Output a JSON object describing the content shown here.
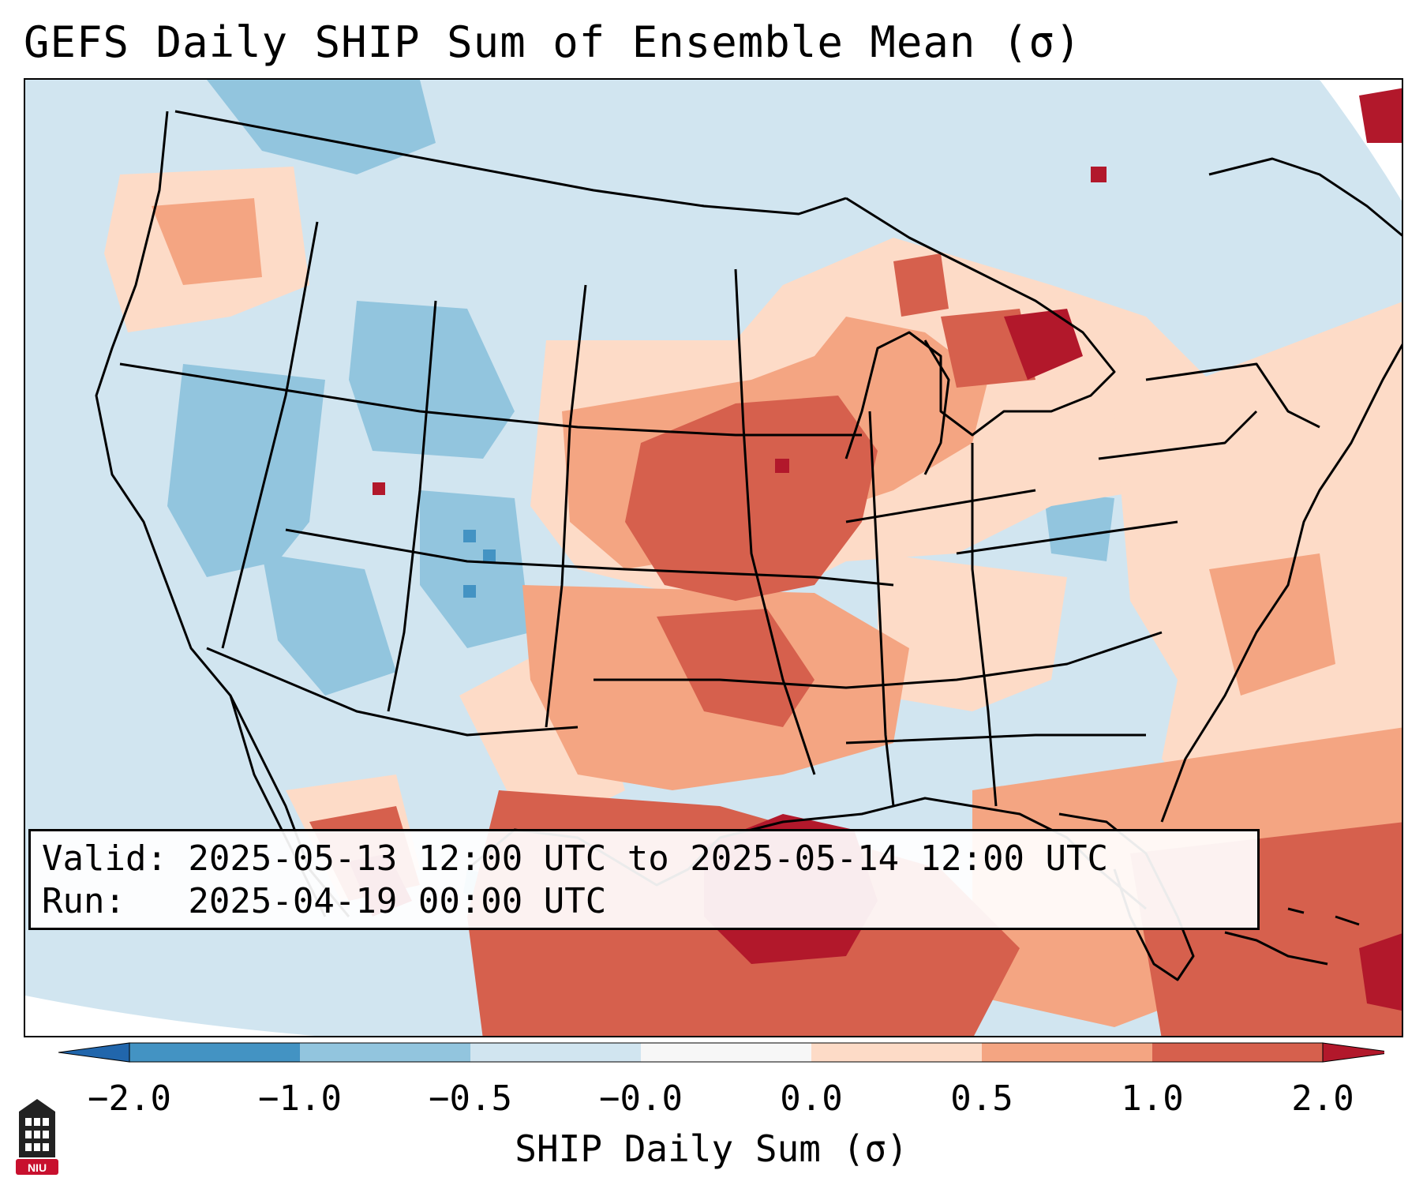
{
  "title": "GEFS Daily SHIP Sum of Ensemble Mean (σ)",
  "info": {
    "valid_line": "Valid: 2025-05-13 12:00 UTC to 2025-05-14 12:00 UTC",
    "run_line": "Run:   2025-04-19 00:00 UTC"
  },
  "colorbar": {
    "label": "SHIP Daily Sum (σ)",
    "ticks": [
      "−2.0",
      "−1.0",
      "−0.5",
      "−0.0",
      "0.0",
      "0.5",
      "1.0",
      "2.0"
    ],
    "bins": [
      {
        "range": "< -2.0",
        "color": "#2166ac"
      },
      {
        "range": "-2.0 to -1.0",
        "color": "#4393c3"
      },
      {
        "range": "-1.0 to -0.5",
        "color": "#92c5de"
      },
      {
        "range": "-0.5 to -0.0",
        "color": "#d1e5f0"
      },
      {
        "range": "-0.0 to 0.0",
        "color": "#f7f7f7"
      },
      {
        "range": "0.0 to 0.5",
        "color": "#fddbc7"
      },
      {
        "range": "0.5 to 1.0",
        "color": "#f4a582"
      },
      {
        "range": "1.0 to 2.0",
        "color": "#d6604d"
      },
      {
        "range": "> 2.0",
        "color": "#b2182b"
      }
    ]
  },
  "map": {
    "region": "CONUS",
    "field_colors": {
      "strong_negative": "#92c5de",
      "weak_negative": "#d1e5f0",
      "weak_positive": "#fddbc7",
      "moderate_positive": "#f4a582",
      "strong_positive": "#d6604d",
      "extreme_positive": "#b2182b"
    }
  },
  "logo": {
    "text": "NIU",
    "color": "#c8102e"
  }
}
